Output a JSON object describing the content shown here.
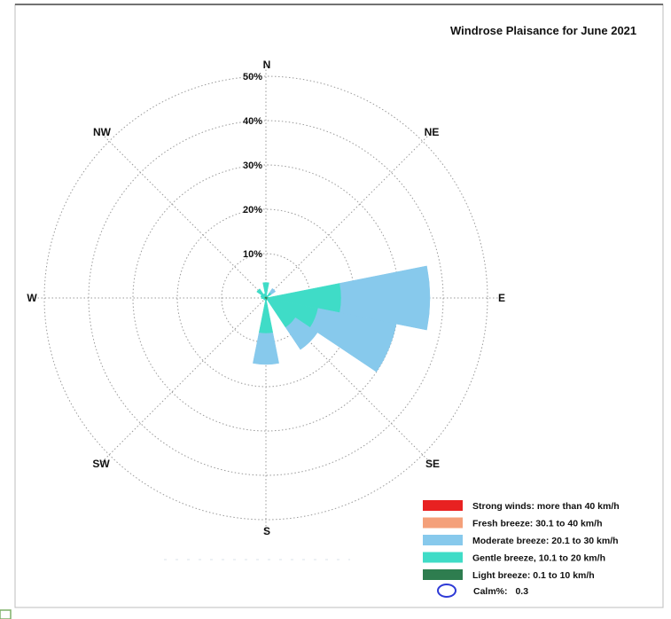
{
  "chart_data": {
    "type": "windrose",
    "title": "Windrose Plaisance  for June 2021",
    "directions": [
      "N",
      "NE",
      "E",
      "SE",
      "S",
      "SW",
      "W",
      "NW"
    ],
    "radial_ticks": [
      "10%",
      "20%",
      "30%",
      "40%",
      "50%"
    ],
    "rmax": 50,
    "sectors": [
      {
        "direction": "N",
        "angle": 0,
        "stacks": [
          0.4,
          3.5
        ]
      },
      {
        "direction": "NNE",
        "angle": 22.5,
        "stacks": [
          0.3,
          0.6
        ]
      },
      {
        "direction": "NE",
        "angle": 45,
        "stacks": [
          0.3,
          1.5,
          2.6
        ]
      },
      {
        "direction": "ENE",
        "angle": 67.5,
        "stacks": [
          0.2,
          0.5
        ]
      },
      {
        "direction": "E",
        "angle": 90,
        "stacks": [
          0.5,
          17,
          37
        ]
      },
      {
        "direction": "ESE",
        "angle": 112.5,
        "stacks": [
          0.3,
          12,
          30
        ]
      },
      {
        "direction": "SE",
        "angle": 135,
        "stacks": [
          0.4,
          8,
          14
        ]
      },
      {
        "direction": "SSE",
        "angle": 157.5,
        "stacks": [
          0.2,
          0.5
        ]
      },
      {
        "direction": "S",
        "angle": 180,
        "stacks": [
          0.5,
          8,
          15
        ]
      },
      {
        "direction": "SSW",
        "angle": 202.5,
        "stacks": [
          0.2,
          0.5
        ]
      },
      {
        "direction": "SW",
        "angle": 225,
        "stacks": [
          0.2,
          0.6
        ]
      },
      {
        "direction": "WSW",
        "angle": 247.5,
        "stacks": [
          0.2,
          0.6
        ]
      },
      {
        "direction": "W",
        "angle": 270,
        "stacks": [
          0.3,
          1.0
        ]
      },
      {
        "direction": "WNW",
        "angle": 292.5,
        "stacks": [
          0.3,
          1.2
        ]
      },
      {
        "direction": "NW",
        "angle": 315,
        "stacks": [
          0.3,
          2.5
        ]
      },
      {
        "direction": "NNW",
        "angle": 337.5,
        "stacks": [
          0.3,
          1.0
        ]
      }
    ],
    "legend": [
      {
        "label": "Strong winds: more than 40 km/h",
        "color": "#e82121"
      },
      {
        "label": "Fresh breeze: 30.1 to 40 km/h",
        "color": "#f4a07a"
      },
      {
        "label": "Moderate breeze: 20.1 to 30 km/h",
        "color": "#87c9ec"
      },
      {
        "label": "Gentle breeze, 10.1 to 20 km/h",
        "color": "#3fdcc7"
      },
      {
        "label": "Light breeze: 0.1 to 10 km/h",
        "color": "#2e7d4f"
      }
    ],
    "calm_label": "Calm%:",
    "calm_value": "0.3",
    "calm_color": "#2e3ad6"
  }
}
